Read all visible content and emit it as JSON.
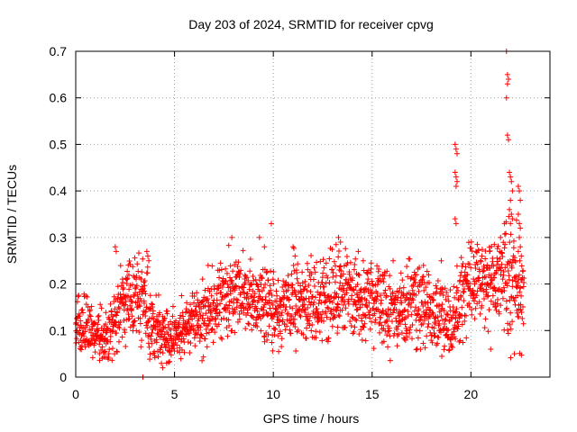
{
  "chart_data": {
    "type": "scatter",
    "title": "Day 203 of 2024, SRMTID for receiver cpvg",
    "xlabel": "GPS time / hours",
    "ylabel": "SRMTID / TECUs",
    "xlim": [
      0,
      24
    ],
    "ylim": [
      0,
      0.7
    ],
    "xticks": [
      0,
      5,
      10,
      15,
      20
    ],
    "yticks": [
      0,
      0.1,
      0.2,
      0.3,
      0.4,
      0.5,
      0.6,
      0.7
    ],
    "grid": true,
    "marker": "+",
    "color": "#ff0000",
    "band": {
      "x": [
        0,
        0.5,
        1,
        1.5,
        2,
        2.5,
        3,
        3.5,
        4,
        4.5,
        5,
        5.5,
        6,
        6.5,
        7,
        7.5,
        8,
        8.5,
        9,
        9.5,
        10,
        10.5,
        11,
        11.5,
        12,
        12.5,
        13,
        13.5,
        14,
        14.5,
        15,
        15.5,
        16,
        16.5,
        17,
        17.5,
        18,
        18.5,
        19,
        19.5,
        20,
        20.5,
        21,
        21.5,
        22,
        22.5
      ],
      "center": [
        0.11,
        0.12,
        0.09,
        0.08,
        0.12,
        0.16,
        0.17,
        0.16,
        0.1,
        0.09,
        0.09,
        0.11,
        0.12,
        0.13,
        0.15,
        0.17,
        0.19,
        0.18,
        0.17,
        0.16,
        0.15,
        0.15,
        0.16,
        0.15,
        0.16,
        0.17,
        0.18,
        0.18,
        0.17,
        0.17,
        0.17,
        0.15,
        0.14,
        0.15,
        0.16,
        0.16,
        0.13,
        0.14,
        0.12,
        0.16,
        0.2,
        0.21,
        0.2,
        0.22,
        0.2,
        0.18
      ],
      "spread": [
        0.04,
        0.05,
        0.04,
        0.04,
        0.06,
        0.07,
        0.06,
        0.06,
        0.05,
        0.04,
        0.04,
        0.04,
        0.04,
        0.05,
        0.05,
        0.06,
        0.06,
        0.06,
        0.06,
        0.06,
        0.06,
        0.06,
        0.06,
        0.06,
        0.06,
        0.06,
        0.07,
        0.06,
        0.06,
        0.06,
        0.06,
        0.06,
        0.06,
        0.05,
        0.06,
        0.06,
        0.05,
        0.05,
        0.05,
        0.06,
        0.06,
        0.06,
        0.06,
        0.07,
        0.09,
        0.07
      ],
      "samples_per_hour": 90,
      "x_end": 22.7
    },
    "outliers": [
      [
        2.0,
        0.28
      ],
      [
        2.05,
        0.27
      ],
      [
        3.6,
        0.27
      ],
      [
        3.65,
        0.26
      ],
      [
        3.7,
        0.25
      ],
      [
        6.7,
        0.24
      ],
      [
        7.9,
        0.3
      ],
      [
        9.3,
        0.3
      ],
      [
        9.55,
        0.28
      ],
      [
        9.9,
        0.33
      ],
      [
        11.0,
        0.28
      ],
      [
        11.1,
        0.26
      ],
      [
        13.3,
        0.3
      ],
      [
        13.4,
        0.29
      ],
      [
        14.3,
        0.27
      ],
      [
        17.6,
        0.24
      ],
      [
        18.5,
        0.25
      ],
      [
        19.2,
        0.5
      ],
      [
        19.25,
        0.49
      ],
      [
        19.3,
        0.48
      ],
      [
        19.2,
        0.44
      ],
      [
        19.25,
        0.43
      ],
      [
        19.3,
        0.42
      ],
      [
        19.25,
        0.41
      ],
      [
        19.2,
        0.34
      ],
      [
        19.25,
        0.33
      ],
      [
        21.5,
        0.3
      ],
      [
        21.7,
        0.33
      ],
      [
        21.8,
        0.7
      ],
      [
        21.85,
        0.65
      ],
      [
        21.9,
        0.64
      ],
      [
        21.85,
        0.63
      ],
      [
        21.8,
        0.6
      ],
      [
        21.85,
        0.52
      ],
      [
        21.9,
        0.51
      ],
      [
        21.95,
        0.44
      ],
      [
        22.0,
        0.43
      ],
      [
        22.05,
        0.42
      ],
      [
        22.1,
        0.4
      ],
      [
        22.0,
        0.38
      ],
      [
        21.95,
        0.36
      ],
      [
        22.05,
        0.35
      ],
      [
        22.1,
        0.34
      ],
      [
        22.0,
        0.33
      ],
      [
        22.4,
        0.41
      ],
      [
        22.45,
        0.4
      ],
      [
        22.5,
        0.38
      ],
      [
        22.4,
        0.35
      ],
      [
        22.45,
        0.33
      ],
      [
        22.5,
        0.32
      ],
      [
        22.45,
        0.3
      ],
      [
        22.5,
        0.28
      ],
      [
        22.4,
        0.27
      ],
      [
        22.55,
        0.26
      ],
      [
        4.4,
        0.02
      ],
      [
        4.6,
        0.03
      ],
      [
        21.0,
        0.06
      ],
      [
        22.2,
        0.05
      ],
      [
        3.4,
        0.0
      ]
    ]
  }
}
